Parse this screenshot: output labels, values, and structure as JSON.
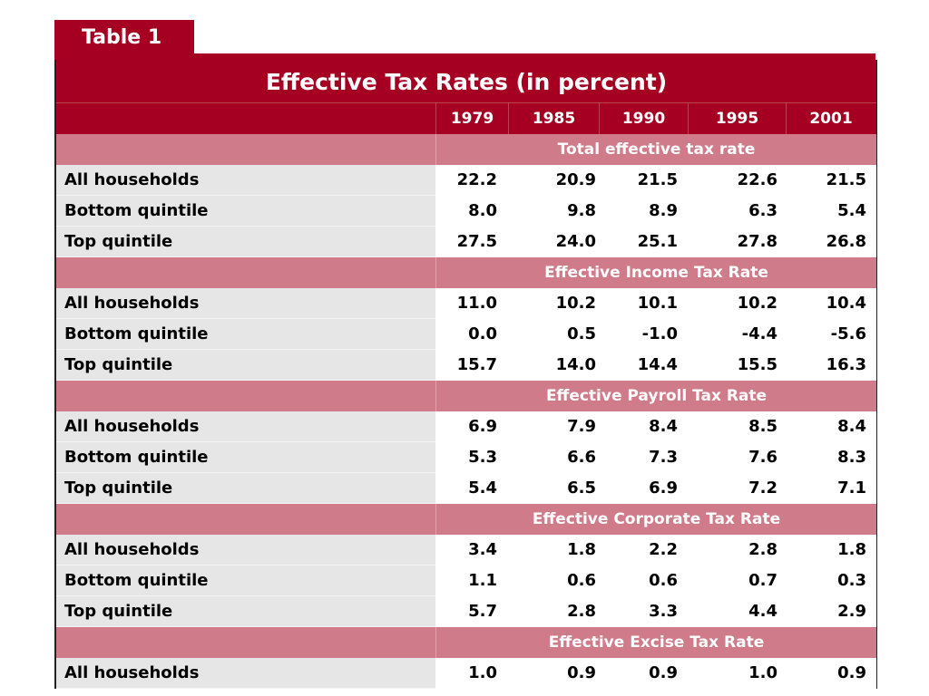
{
  "tab_label": "Table 1",
  "title": "Effective Tax Rates (in percent)",
  "years": [
    "1979",
    "1985",
    "1990",
    "1995",
    "2001"
  ],
  "colors": {
    "header": "#a50021",
    "section": "#d07b89",
    "label_bg": "#e6e6e6"
  },
  "sections": [
    {
      "title": "Total effective tax rate",
      "rows": [
        {
          "label": "All households",
          "values": [
            "22.2",
            "20.9",
            "21.5",
            "22.6",
            "21.5"
          ]
        },
        {
          "label": "Bottom quintile",
          "values": [
            "8.0",
            "9.8",
            "8.9",
            "6.3",
            "5.4"
          ]
        },
        {
          "label": "Top quintile",
          "values": [
            "27.5",
            "24.0",
            "25.1",
            "27.8",
            "26.8"
          ]
        }
      ]
    },
    {
      "title": "Effective Income Tax Rate",
      "rows": [
        {
          "label": "All households",
          "values": [
            "11.0",
            "10.2",
            "10.1",
            "10.2",
            "10.4"
          ]
        },
        {
          "label": "Bottom quintile",
          "values": [
            "0.0",
            "0.5",
            "-1.0",
            "-4.4",
            "-5.6"
          ]
        },
        {
          "label": "Top quintile",
          "values": [
            "15.7",
            "14.0",
            "14.4",
            "15.5",
            "16.3"
          ]
        }
      ]
    },
    {
      "title": "Effective Payroll Tax Rate",
      "rows": [
        {
          "label": "All households",
          "values": [
            "6.9",
            "7.9",
            "8.4",
            "8.5",
            "8.4"
          ]
        },
        {
          "label": "Bottom quintile",
          "values": [
            "5.3",
            "6.6",
            "7.3",
            "7.6",
            "8.3"
          ]
        },
        {
          "label": "Top quintile",
          "values": [
            "5.4",
            "6.5",
            "6.9",
            "7.2",
            "7.1"
          ]
        }
      ]
    },
    {
      "title": "Effective Corporate Tax Rate",
      "rows": [
        {
          "label": "All households",
          "values": [
            "3.4",
            "1.8",
            "2.2",
            "2.8",
            "1.8"
          ]
        },
        {
          "label": "Bottom quintile",
          "values": [
            "1.1",
            "0.6",
            "0.6",
            "0.7",
            "0.3"
          ]
        },
        {
          "label": "Top quintile",
          "values": [
            "5.7",
            "2.8",
            "3.3",
            "4.4",
            "2.9"
          ]
        }
      ]
    },
    {
      "title": "Effective Excise Tax Rate",
      "rows": [
        {
          "label": "All households",
          "values": [
            "1.0",
            "0.9",
            "0.9",
            "1.0",
            "0.9"
          ]
        }
      ]
    }
  ]
}
